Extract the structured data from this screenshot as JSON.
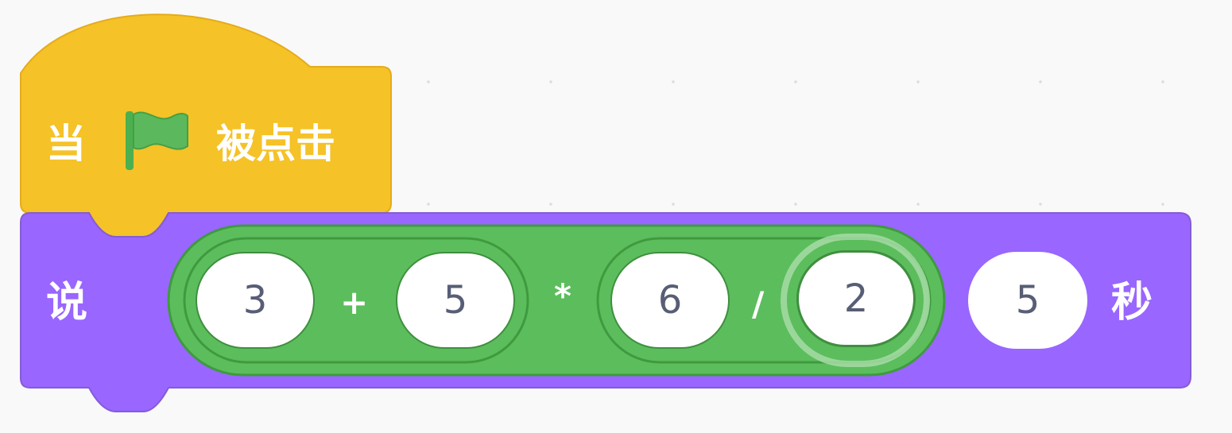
{
  "workspace": {
    "hat_block": {
      "text_before": "当",
      "icon": "green-flag-icon",
      "text_after": "被点击",
      "color": "#f5c227",
      "flag_color": "#5cb85c"
    },
    "say_block": {
      "label": "说",
      "unit": "秒",
      "color": "#9966ff",
      "duration": "5",
      "expression": {
        "operator": "/",
        "color": "#5cbd5c",
        "left": {
          "operator": "*",
          "left": {
            "operator": "+",
            "a": "3",
            "b": "5"
          },
          "right": "6"
        },
        "right": "2"
      }
    }
  }
}
